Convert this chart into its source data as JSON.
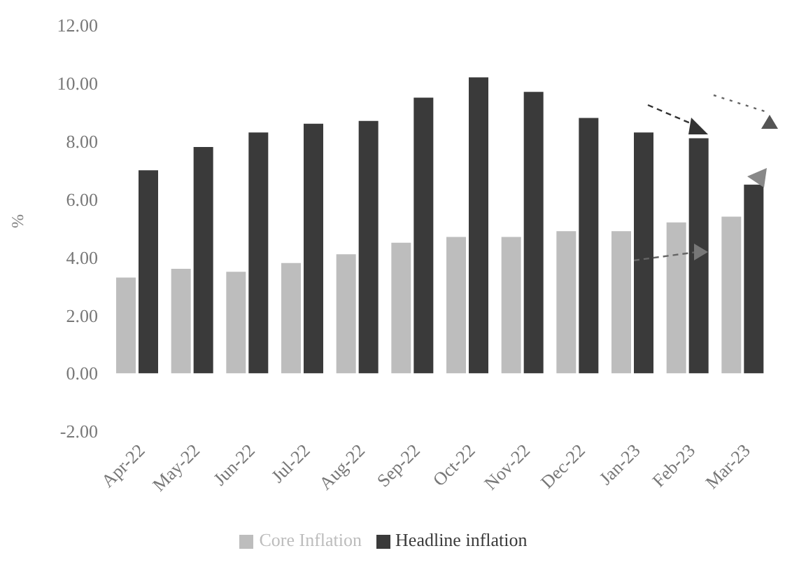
{
  "chart_data": {
    "type": "bar",
    "ylabel": "%",
    "categories": [
      "Apr-22",
      "May-22",
      "Jun-22",
      "Jul-22",
      "Aug-22",
      "Sep-22",
      "Oct-22",
      "Nov-22",
      "Dec-22",
      "Jan-23",
      "Feb-23",
      "Mar-23"
    ],
    "series": [
      {
        "name": "Core Inflation",
        "color": "#bdbdbd",
        "values": [
          3.3,
          3.6,
          3.5,
          3.8,
          4.1,
          4.5,
          4.7,
          4.7,
          4.9,
          4.9,
          5.2,
          5.4
        ]
      },
      {
        "name": "Headline inflation",
        "color": "#3a3a3a",
        "values": [
          7.0,
          7.8,
          8.3,
          8.6,
          8.7,
          9.5,
          10.2,
          9.7,
          8.8,
          8.3,
          8.1,
          6.5
        ]
      }
    ],
    "ylim": [
      -2,
      12
    ],
    "yticks": [
      {
        "value": -2,
        "label": "-2.00"
      },
      {
        "value": 0,
        "label": "0.00"
      },
      {
        "value": 2,
        "label": "2.00"
      },
      {
        "value": 4,
        "label": "4.00"
      },
      {
        "value": 6,
        "label": "6.00"
      },
      {
        "value": 8,
        "label": "8.00"
      },
      {
        "value": 10,
        "label": "10.00"
      },
      {
        "value": 12,
        "label": "12.00"
      }
    ],
    "legend": "bottom"
  }
}
